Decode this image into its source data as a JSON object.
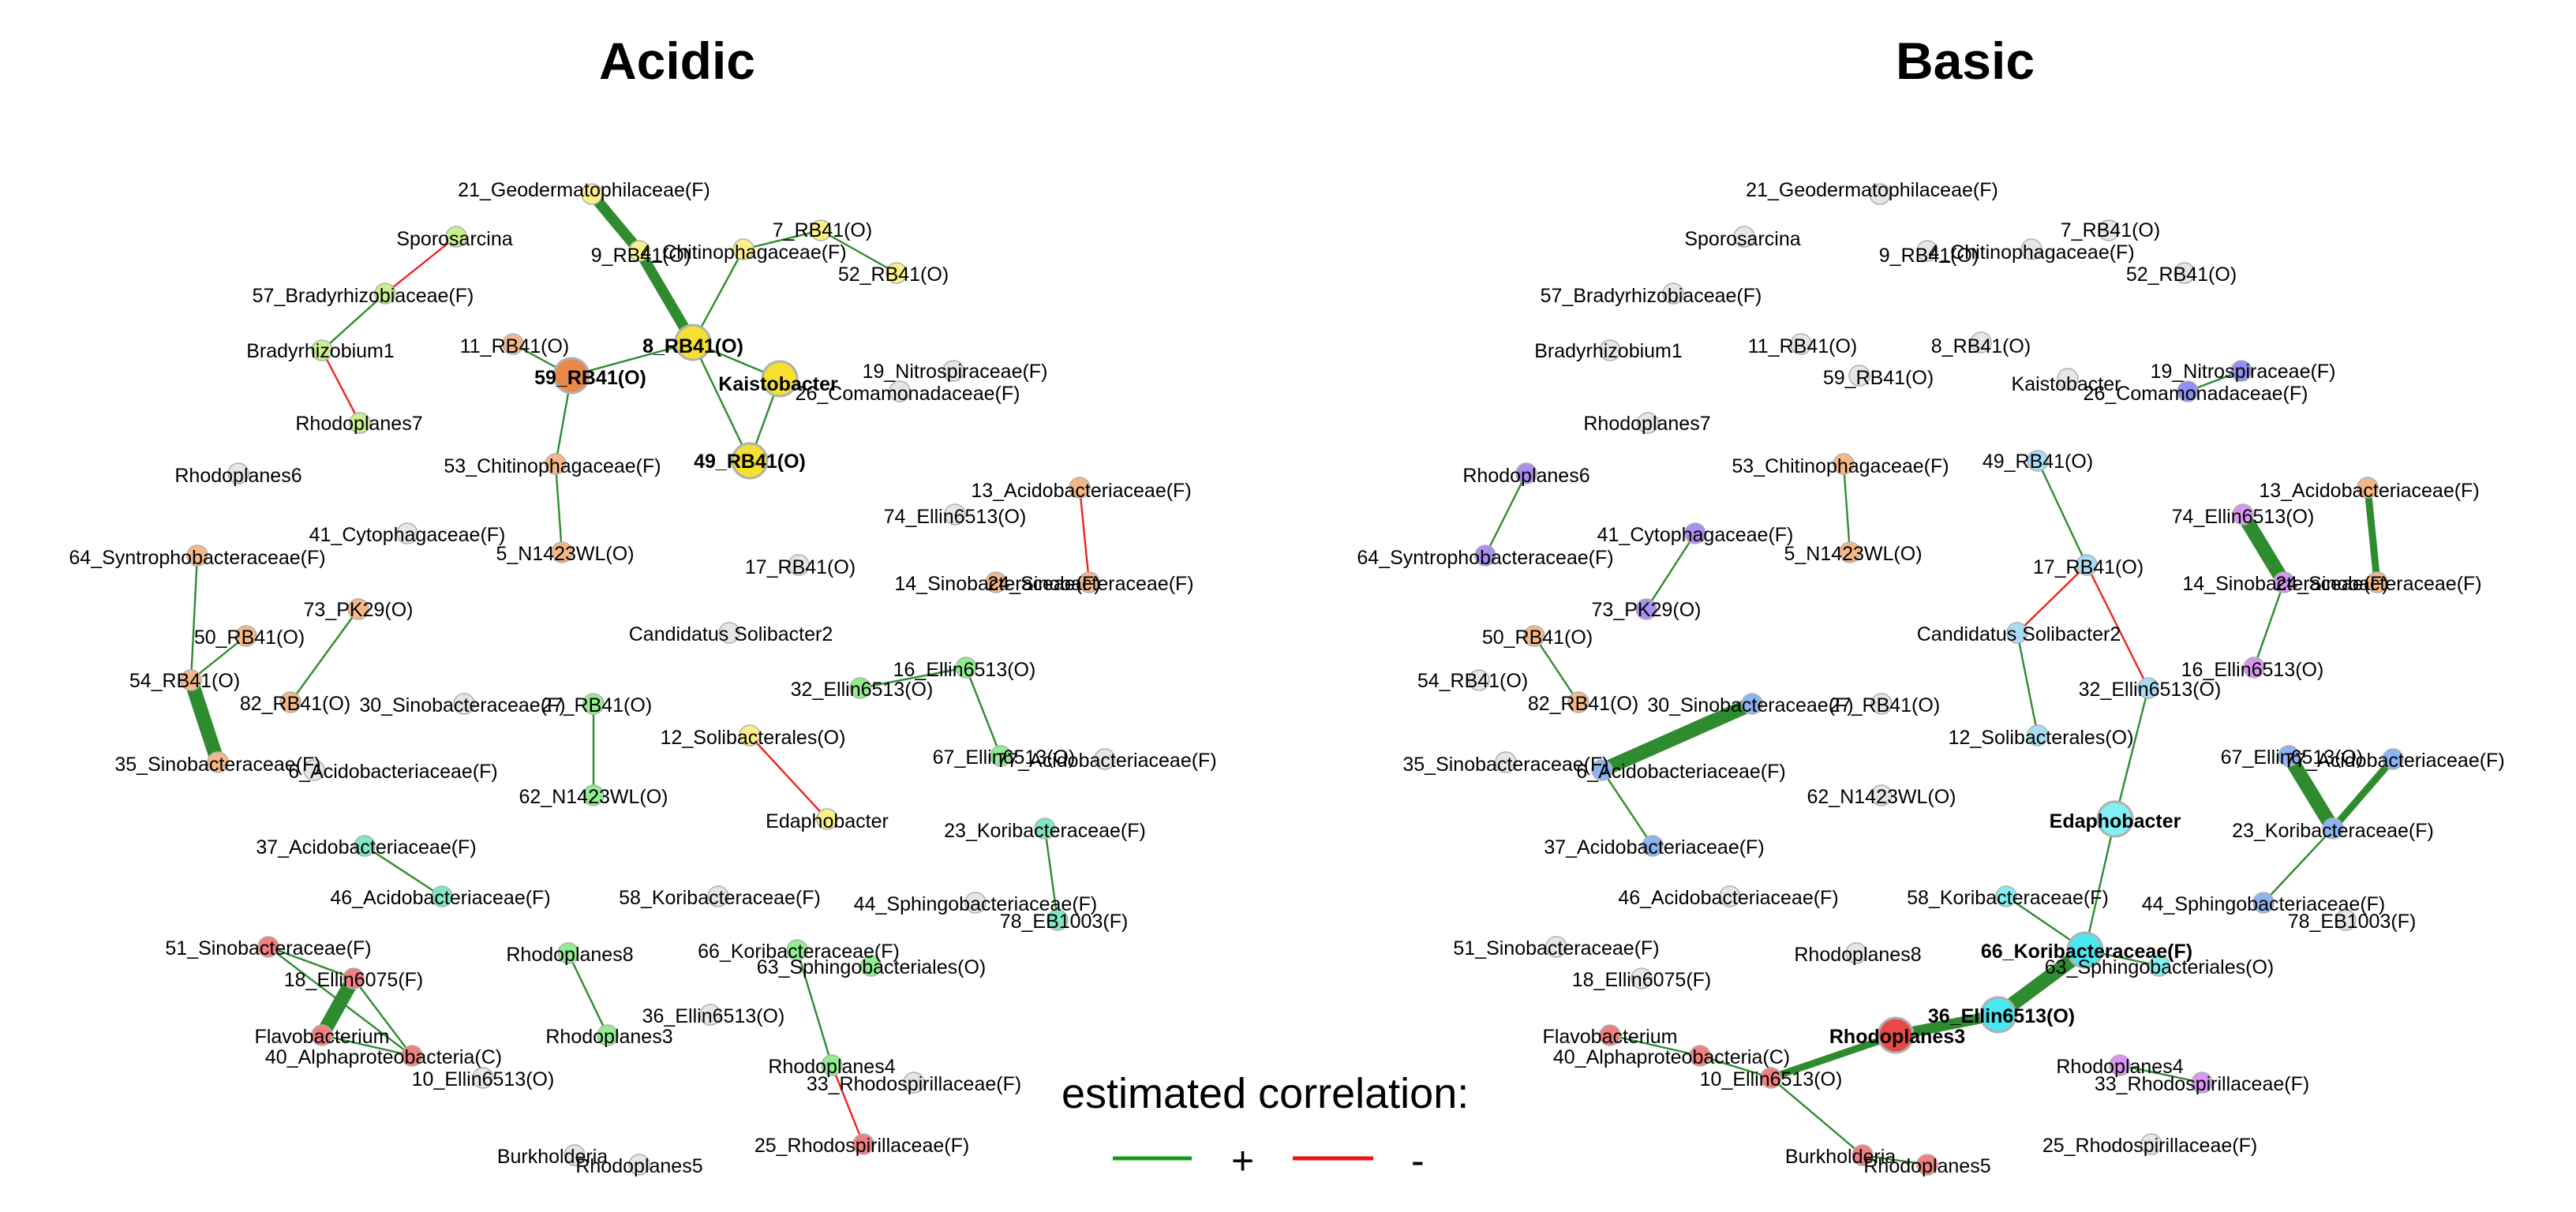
{
  "titles": {
    "acidic": "Acidic",
    "basic": "Basic"
  },
  "legend": {
    "title": "estimated correlation:",
    "positive": "+",
    "negative": "-",
    "positive_color": "#1a9a1a",
    "negative_color": "#ee1111"
  },
  "edge_colors": {
    "pos": "#2e8b2e",
    "neg": "#ee2222"
  },
  "group_colors": {
    "grey": "#e6e6e6",
    "yellow": "#faf08a",
    "yellow_strong": "#f5e030",
    "orange": "#f4b888",
    "orange_strong": "#e8884a",
    "lightgreen": "#c8f090",
    "green": "#90ee90",
    "mint": "#7ee8c0",
    "red": "#f08080",
    "red_strong": "#e84848",
    "purple": "#a98ef0",
    "violet": "#d896f0",
    "blue": "#8cb4f0",
    "lightblue": "#a8dcf4",
    "cyan": "#80f0f4",
    "cyan_strong": "#48e8f0",
    "periwinkle": "#9090f0"
  },
  "nodes": {
    "n21": "21_Geodermatophilaceae(F)",
    "spo": "Sporosarcina",
    "n7": "7_RB41(O)",
    "n9": "9_RB41(O)",
    "n4": "4_Chitinophagaceae(F)",
    "n52": "52_RB41(O)",
    "n57": "57_Bradyrhizobiaceae(F)",
    "n11": "11_RB41(O)",
    "n8": "8_RB41(O)",
    "bra": "Bradyrhizobium1",
    "n19": "19_Nitrospiraceae(F)",
    "n59": "59_RB41(O)",
    "kai": "Kaistobacter",
    "n26": "26_Comamonadaceae(F)",
    "rp7": "Rhodoplanes7",
    "n49": "49_RB41(O)",
    "n53": "53_Chitinophagaceae(F)",
    "rp6": "Rhodoplanes6",
    "n13": "13_Acidobacteriaceae(F)",
    "n74": "74_Ellin6513(O)",
    "n41": "41_Cytophagaceae(F)",
    "n64": "64_Syntrophobacteraceae(F)",
    "n5": "5_N1423WL(O)",
    "n17": "17_RB41(O)",
    "n14": "14_Sinobacteraceae(F)",
    "n24": "24_Sinobacteraceae(F)",
    "n73": "73_PK29(O)",
    "cs2": "Candidatus Solibacter2",
    "n50": "50_RB41(O)",
    "n16": "16_Ellin6513(O)",
    "n54": "54_RB41(O)",
    "n32": "32_Ellin6513(O)",
    "n82": "82_RB41(O)",
    "n30": "30_Sinobacteraceae(F)",
    "n27": "27_RB41(O)",
    "n12": "12_Solibacterales(O)",
    "n35": "35_Sinobacteraceae(F)",
    "n67": "67_Ellin6513(O)",
    "n77": "77_Acidobacteriaceae(F)",
    "n6": "6_Acidobacteriaceae(F)",
    "n62": "62_N1423WL(O)",
    "eda": "Edaphobacter",
    "n23": "23_Koribacteraceae(F)",
    "n37": "37_Acidobacteriaceae(F)",
    "n46": "46_Acidobacteriaceae(F)",
    "n58": "58_Koribacteraceae(F)",
    "n44": "44_Sphingobacteriaceae(F)",
    "n78": "78_EB1003(F)",
    "n51": "51_Sinobacteraceae(F)",
    "rp8": "Rhodoplanes8",
    "n66": "66_Koribacteraceae(F)",
    "n63": "63_Sphingobacteriales(O)",
    "n18": "18_Ellin6075(F)",
    "n36": "36_Ellin6513(O)",
    "fla": "Flavobacterium",
    "rp3": "Rhodoplanes3",
    "n40": "40_Alphaproteobacteria(C)",
    "rp4": "Rhodoplanes4",
    "n10": "10_Ellin6513(O)",
    "n33": "33_Rhodospirillaceae(F)",
    "n25": "25_Rhodospirillaceae(F)",
    "bur": "Burkholderia",
    "rp5": "Rhodoplanes5"
  },
  "acidic": {
    "nodes": {
      "n21": "yellow",
      "spo": "lightgreen",
      "n7": "yellow",
      "n9": "yellow",
      "n4": "yellow",
      "n52": "yellow",
      "n57": "lightgreen",
      "n11": "orange",
      "n8": "yellow_strong",
      "bra": "lightgreen",
      "n19": "grey",
      "n59": "orange_strong",
      "kai": "yellow_strong",
      "n26": "grey",
      "rp7": "lightgreen",
      "n49": "yellow_strong",
      "n53": "orange",
      "rp6": "grey",
      "n13": "orange",
      "n74": "grey",
      "n41": "grey",
      "n64": "orange",
      "n5": "orange",
      "n17": "grey",
      "n14": "orange",
      "n24": "orange",
      "n73": "orange",
      "cs2": "grey",
      "n50": "orange",
      "n16": "green",
      "n54": "orange",
      "n32": "green",
      "n82": "orange",
      "n30": "grey",
      "n27": "green",
      "n12": "yellow",
      "n35": "orange",
      "n67": "green",
      "n77": "grey",
      "n6": "grey",
      "n62": "green",
      "eda": "yellow",
      "n23": "mint",
      "n37": "mint",
      "n46": "mint",
      "n58": "grey",
      "n44": "grey",
      "n78": "mint",
      "n51": "red",
      "rp8": "green",
      "n66": "green",
      "n63": "green",
      "n18": "red",
      "n36": "grey",
      "fla": "red",
      "rp3": "green",
      "n40": "red",
      "rp4": "green",
      "n10": "grey",
      "n33": "grey",
      "n25": "red",
      "bur": "grey",
      "rp5": "grey"
    },
    "large": [
      "n8",
      "n59",
      "kai",
      "n49"
    ],
    "bold_labels": [
      "n8",
      "n59",
      "kai",
      "n49"
    ],
    "edges": [
      [
        "n21",
        "n9",
        "pos",
        3
      ],
      [
        "n9",
        "n8",
        "pos",
        3
      ],
      [
        "n4",
        "n8",
        "pos",
        1
      ],
      [
        "n7",
        "n52",
        "pos",
        1
      ],
      [
        "n4",
        "n7",
        "pos",
        1
      ],
      [
        "n11",
        "n59",
        "pos",
        1
      ],
      [
        "n59",
        "n8",
        "pos",
        1
      ],
      [
        "n8",
        "kai",
        "pos",
        1
      ],
      [
        "n8",
        "n49",
        "pos",
        1
      ],
      [
        "kai",
        "n49",
        "pos",
        1
      ],
      [
        "n59",
        "n53",
        "pos",
        1
      ],
      [
        "n53",
        "n5",
        "pos",
        1
      ],
      [
        "spo",
        "n57",
        "neg",
        1
      ],
      [
        "bra",
        "rp7",
        "neg",
        1
      ],
      [
        "n57",
        "bra",
        "pos",
        1
      ],
      [
        "n13",
        "n24",
        "neg",
        1
      ],
      [
        "n64",
        "n54",
        "pos",
        1
      ],
      [
        "n54",
        "n35",
        "pos",
        4
      ],
      [
        "n50",
        "n54",
        "pos",
        1
      ],
      [
        "n73",
        "n82",
        "pos",
        1
      ],
      [
        "n27",
        "n62",
        "pos",
        1
      ],
      [
        "n12",
        "eda",
        "neg",
        1
      ],
      [
        "n16",
        "n67",
        "pos",
        1
      ],
      [
        "n32",
        "n16",
        "pos",
        1
      ],
      [
        "n23",
        "n78",
        "pos",
        1
      ],
      [
        "n37",
        "n46",
        "pos",
        1
      ],
      [
        "n51",
        "n18",
        "pos",
        1
      ],
      [
        "n18",
        "fla",
        "pos",
        4
      ],
      [
        "n51",
        "n40",
        "pos",
        1
      ],
      [
        "n18",
        "n40",
        "pos",
        1
      ],
      [
        "fla",
        "n40",
        "pos",
        1
      ],
      [
        "rp8",
        "rp3",
        "pos",
        1
      ],
      [
        "n66",
        "rp4",
        "pos",
        1
      ],
      [
        "rp4",
        "n25",
        "neg",
        1
      ]
    ]
  },
  "basic": {
    "nodes": {
      "n21": "grey",
      "spo": "grey",
      "n7": "grey",
      "n9": "grey",
      "n4": "grey",
      "n52": "grey",
      "n57": "grey",
      "n11": "grey",
      "n8": "grey",
      "bra": "grey",
      "n19": "periwinkle",
      "n59": "grey",
      "kai": "grey",
      "n26": "periwinkle",
      "rp7": "grey",
      "n49": "lightblue",
      "n53": "orange",
      "rp6": "purple",
      "n13": "orange",
      "n74": "violet",
      "n41": "purple",
      "n64": "purple",
      "n5": "orange",
      "n17": "lightblue",
      "n14": "violet",
      "n24": "orange",
      "n73": "purple",
      "cs2": "lightblue",
      "n50": "orange",
      "n16": "violet",
      "n54": "grey",
      "n32": "lightblue",
      "n82": "orange",
      "n30": "blue",
      "n27": "grey",
      "n12": "lightblue",
      "n35": "grey",
      "n67": "blue",
      "n77": "blue",
      "n6": "blue",
      "n62": "grey",
      "eda": "cyan",
      "n23": "blue",
      "n37": "blue",
      "n46": "grey",
      "n58": "cyan",
      "n44": "blue",
      "n78": "grey",
      "n51": "grey",
      "rp8": "grey",
      "n66": "cyan_strong",
      "n63": "cyan",
      "n18": "grey",
      "n36": "cyan_strong",
      "fla": "red",
      "rp3": "red_strong",
      "n40": "red",
      "rp4": "violet",
      "n10": "red",
      "n33": "violet",
      "n25": "grey",
      "bur": "red",
      "rp5": "red"
    },
    "large": [
      "eda",
      "n66",
      "n36",
      "rp3"
    ],
    "bold_labels": [
      "eda",
      "n66",
      "n36",
      "rp3"
    ],
    "edges": [
      [
        "n19",
        "n26",
        "pos",
        1
      ],
      [
        "n41",
        "n73",
        "pos",
        1
      ],
      [
        "rp6",
        "n64",
        "pos",
        1
      ],
      [
        "n53",
        "n5",
        "pos",
        1
      ],
      [
        "n50",
        "n82",
        "pos",
        1
      ],
      [
        "n49",
        "n17",
        "pos",
        1
      ],
      [
        "n17",
        "cs2",
        "neg",
        1
      ],
      [
        "n17",
        "n32",
        "neg",
        1
      ],
      [
        "cs2",
        "n12",
        "pos",
        1
      ],
      [
        "n32",
        "eda",
        "pos",
        1
      ],
      [
        "n74",
        "n14",
        "pos",
        4
      ],
      [
        "n13",
        "n24",
        "pos",
        2
      ],
      [
        "n14",
        "n16",
        "pos",
        1
      ],
      [
        "n30",
        "n6",
        "pos",
        4
      ],
      [
        "n6",
        "n37",
        "pos",
        1
      ],
      [
        "n67",
        "n23",
        "pos",
        4
      ],
      [
        "n77",
        "n23",
        "pos",
        2
      ],
      [
        "n23",
        "n44",
        "pos",
        1
      ],
      [
        "eda",
        "n66",
        "pos",
        1
      ],
      [
        "n58",
        "n66",
        "pos",
        1
      ],
      [
        "n66",
        "n63",
        "pos",
        1
      ],
      [
        "n66",
        "n36",
        "pos",
        4
      ],
      [
        "n36",
        "rp3",
        "pos",
        3
      ],
      [
        "rp3",
        "n10",
        "pos",
        2
      ],
      [
        "fla",
        "n40",
        "pos",
        1
      ],
      [
        "n40",
        "n10",
        "pos",
        1
      ],
      [
        "n10",
        "bur",
        "pos",
        1
      ],
      [
        "bur",
        "rp5",
        "pos",
        1
      ],
      [
        "rp4",
        "n33",
        "pos",
        1
      ]
    ]
  }
}
